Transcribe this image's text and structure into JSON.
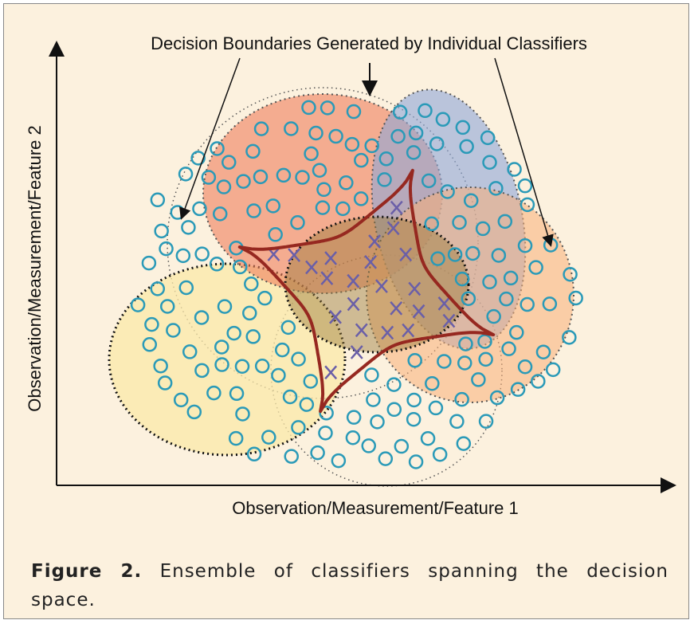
{
  "annotation": "Decision Boundaries Generated by Individual Classifiers",
  "x_axis_label": "Observation/Measurement/Feature 1",
  "y_axis_label": "Observation/Measurement/Feature 2",
  "caption": {
    "label": "Figure 2.",
    "text": "Ensemble of classifiers spanning the decision space."
  }
}
